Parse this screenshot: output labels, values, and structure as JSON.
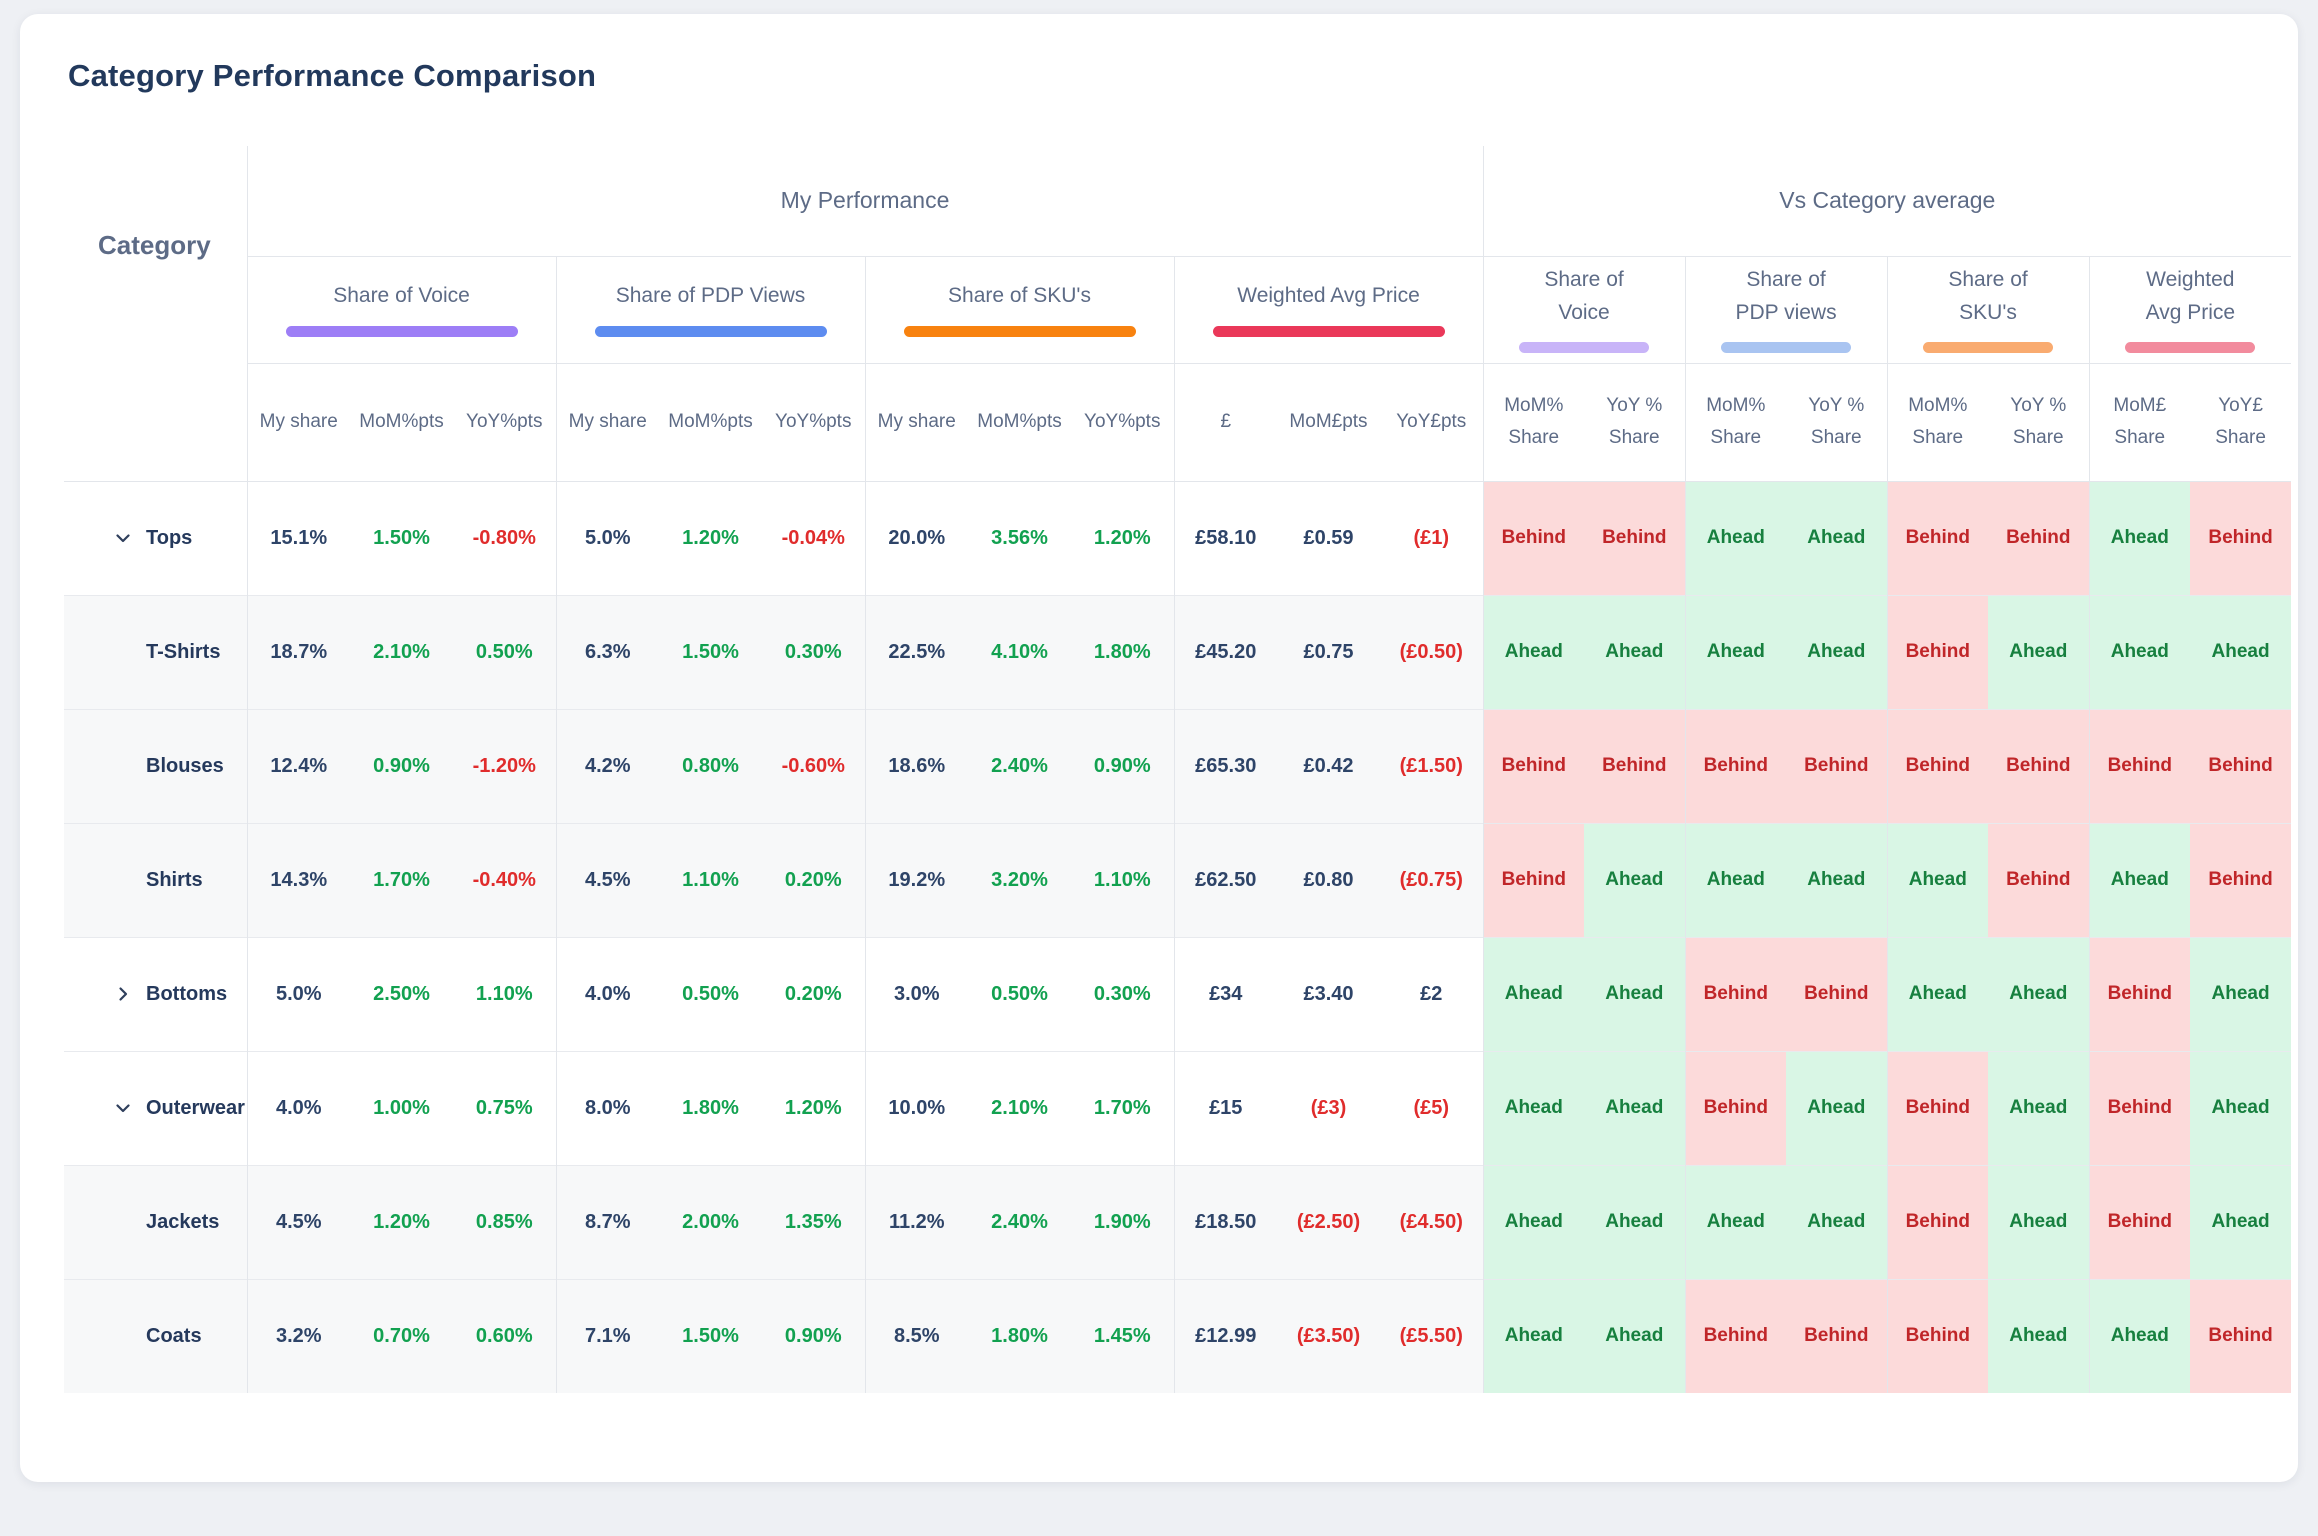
{
  "title": "Category Performance Comparison",
  "table": {
    "category_col_header": "Category",
    "group_headers": [
      {
        "label": "My Performance"
      },
      {
        "label": "Vs Category average"
      }
    ],
    "my_performance_metrics": [
      {
        "label": "Share of Voice",
        "underline_color": "#9d7ef6",
        "subcols": [
          "My share",
          "MoM%pts",
          "YoY%pts"
        ]
      },
      {
        "label": "Share of PDP Views",
        "underline_color": "#5d8cf0",
        "subcols": [
          "My share",
          "MoM%pts",
          "YoY%pts"
        ]
      },
      {
        "label": "Share of SKU's",
        "underline_color": "#f8820f",
        "subcols": [
          "My share",
          "MoM%pts",
          "YoY%pts"
        ]
      },
      {
        "label": "Weighted Avg Price",
        "underline_color": "#ea3859",
        "subcols": [
          "£",
          "MoM£pts",
          "YoY£pts"
        ]
      }
    ],
    "vs_category_metrics": [
      {
        "label": [
          "Share of",
          "Voice"
        ],
        "underline_color": "#c8b4f8",
        "subcols": [
          [
            "MoM%",
            "Share"
          ],
          [
            "YoY %",
            "Share"
          ]
        ]
      },
      {
        "label": [
          "Share of",
          "PDP views"
        ],
        "underline_color": "#a9c4f1",
        "subcols": [
          [
            "MoM%",
            "Share"
          ],
          [
            "YoY %",
            "Share"
          ]
        ]
      },
      {
        "label": [
          "Share of",
          "SKU's"
        ],
        "underline_color": "#f9ab70",
        "subcols": [
          [
            "MoM%",
            "Share"
          ],
          [
            "YoY %",
            "Share"
          ]
        ]
      },
      {
        "label": [
          "Weighted",
          "Avg Price"
        ],
        "underline_color": "#f28b9d",
        "subcols": [
          [
            "MoM£",
            "Share"
          ],
          [
            "YoY£",
            "Share"
          ]
        ]
      }
    ],
    "status": {
      "positive": "Ahead",
      "negative": "Behind"
    },
    "rows": [
      {
        "category": "Tops",
        "type": "parent",
        "chevron": "down",
        "metrics": [
          [
            "15.1%",
            "dark"
          ],
          [
            "1.50%",
            "green"
          ],
          [
            "-0.80%",
            "red"
          ],
          [
            "5.0%",
            "dark"
          ],
          [
            "1.20%",
            "green"
          ],
          [
            "-0.04%",
            "red"
          ],
          [
            "20.0%",
            "dark"
          ],
          [
            "3.56%",
            "green"
          ],
          [
            "1.20%",
            "green"
          ],
          [
            "£58.10",
            "dark"
          ],
          [
            "£0.59",
            "dark"
          ],
          [
            "(£1)",
            "red"
          ]
        ],
        "vs_category": [
          "Behind",
          "Behind",
          "Ahead",
          "Ahead",
          "Behind",
          "Behind",
          "Ahead",
          "Behind"
        ]
      },
      {
        "category": "T-Shirts",
        "type": "child",
        "chevron": null,
        "metrics": [
          [
            "18.7%",
            "dark"
          ],
          [
            "2.10%",
            "green"
          ],
          [
            "0.50%",
            "green"
          ],
          [
            "6.3%",
            "dark"
          ],
          [
            "1.50%",
            "green"
          ],
          [
            "0.30%",
            "green"
          ],
          [
            "22.5%",
            "dark"
          ],
          [
            "4.10%",
            "green"
          ],
          [
            "1.80%",
            "green"
          ],
          [
            "£45.20",
            "dark"
          ],
          [
            "£0.75",
            "dark"
          ],
          [
            "(£0.50)",
            "red"
          ]
        ],
        "vs_category": [
          "Ahead",
          "Ahead",
          "Ahead",
          "Ahead",
          "Behind",
          "Ahead",
          "Ahead",
          "Ahead"
        ]
      },
      {
        "category": "Blouses",
        "type": "child",
        "chevron": null,
        "metrics": [
          [
            "12.4%",
            "dark"
          ],
          [
            "0.90%",
            "green"
          ],
          [
            "-1.20%",
            "red"
          ],
          [
            "4.2%",
            "dark"
          ],
          [
            "0.80%",
            "green"
          ],
          [
            "-0.60%",
            "red"
          ],
          [
            "18.6%",
            "dark"
          ],
          [
            "2.40%",
            "green"
          ],
          [
            "0.90%",
            "green"
          ],
          [
            "£65.30",
            "dark"
          ],
          [
            "£0.42",
            "dark"
          ],
          [
            "(£1.50)",
            "red"
          ]
        ],
        "vs_category": [
          "Behind",
          "Behind",
          "Behind",
          "Behind",
          "Behind",
          "Behind",
          "Behind",
          "Behind"
        ]
      },
      {
        "category": "Shirts",
        "type": "child",
        "chevron": null,
        "metrics": [
          [
            "14.3%",
            "dark"
          ],
          [
            "1.70%",
            "green"
          ],
          [
            "-0.40%",
            "red"
          ],
          [
            "4.5%",
            "dark"
          ],
          [
            "1.10%",
            "green"
          ],
          [
            "0.20%",
            "green"
          ],
          [
            "19.2%",
            "dark"
          ],
          [
            "3.20%",
            "green"
          ],
          [
            "1.10%",
            "green"
          ],
          [
            "£62.50",
            "dark"
          ],
          [
            "£0.80",
            "dark"
          ],
          [
            "(£0.75)",
            "red"
          ]
        ],
        "vs_category": [
          "Behind",
          "Ahead",
          "Ahead",
          "Ahead",
          "Ahead",
          "Behind",
          "Ahead",
          "Behind"
        ]
      },
      {
        "category": "Bottoms",
        "type": "parent",
        "chevron": "right",
        "metrics": [
          [
            "5.0%",
            "dark"
          ],
          [
            "2.50%",
            "green"
          ],
          [
            "1.10%",
            "green"
          ],
          [
            "4.0%",
            "dark"
          ],
          [
            "0.50%",
            "green"
          ],
          [
            "0.20%",
            "green"
          ],
          [
            "3.0%",
            "dark"
          ],
          [
            "0.50%",
            "green"
          ],
          [
            "0.30%",
            "green"
          ],
          [
            "£34",
            "dark"
          ],
          [
            "£3.40",
            "dark"
          ],
          [
            "£2",
            "dark"
          ]
        ],
        "vs_category": [
          "Ahead",
          "Ahead",
          "Behind",
          "Behind",
          "Ahead",
          "Ahead",
          "Behind",
          "Ahead"
        ]
      },
      {
        "category": "Outerwear",
        "type": "parent",
        "chevron": "down",
        "metrics": [
          [
            "4.0%",
            "dark"
          ],
          [
            "1.00%",
            "green"
          ],
          [
            "0.75%",
            "green"
          ],
          [
            "8.0%",
            "dark"
          ],
          [
            "1.80%",
            "green"
          ],
          [
            "1.20%",
            "green"
          ],
          [
            "10.0%",
            "dark"
          ],
          [
            "2.10%",
            "green"
          ],
          [
            "1.70%",
            "green"
          ],
          [
            "£15",
            "dark"
          ],
          [
            "(£3)",
            "red"
          ],
          [
            "(£5)",
            "red"
          ]
        ],
        "vs_category": [
          "Ahead",
          "Ahead",
          "Behind",
          "Ahead",
          "Behind",
          "Ahead",
          "Behind",
          "Ahead"
        ]
      },
      {
        "category": "Jackets",
        "type": "child",
        "chevron": null,
        "metrics": [
          [
            "4.5%",
            "dark"
          ],
          [
            "1.20%",
            "green"
          ],
          [
            "0.85%",
            "green"
          ],
          [
            "8.7%",
            "dark"
          ],
          [
            "2.00%",
            "green"
          ],
          [
            "1.35%",
            "green"
          ],
          [
            "11.2%",
            "dark"
          ],
          [
            "2.40%",
            "green"
          ],
          [
            "1.90%",
            "green"
          ],
          [
            "£18.50",
            "dark"
          ],
          [
            "(£2.50)",
            "red"
          ],
          [
            "(£4.50)",
            "red"
          ]
        ],
        "vs_category": [
          "Ahead",
          "Ahead",
          "Ahead",
          "Ahead",
          "Behind",
          "Ahead",
          "Behind",
          "Ahead"
        ]
      },
      {
        "category": "Coats",
        "type": "child",
        "chevron": null,
        "metrics": [
          [
            "3.2%",
            "dark"
          ],
          [
            "0.70%",
            "green"
          ],
          [
            "0.60%",
            "green"
          ],
          [
            "7.1%",
            "dark"
          ],
          [
            "1.50%",
            "green"
          ],
          [
            "0.90%",
            "green"
          ],
          [
            "8.5%",
            "dark"
          ],
          [
            "1.80%",
            "green"
          ],
          [
            "1.45%",
            "green"
          ],
          [
            "£12.99",
            "dark"
          ],
          [
            "(£3.50)",
            "red"
          ],
          [
            "(£5.50)",
            "red"
          ]
        ],
        "vs_category": [
          "Ahead",
          "Ahead",
          "Behind",
          "Behind",
          "Behind",
          "Ahead",
          "Ahead",
          "Behind"
        ]
      }
    ]
  },
  "colors": {
    "ahead_bg": "#d9f6e5",
    "ahead_text": "#17803f",
    "behind_bg": "#fcdada",
    "behind_text": "#c02629",
    "positive_value": "#12a150",
    "negative_value": "#e02c2c",
    "value_text": "#2e4468",
    "header_text": "#5d6b86",
    "title_text": "#22395c"
  }
}
